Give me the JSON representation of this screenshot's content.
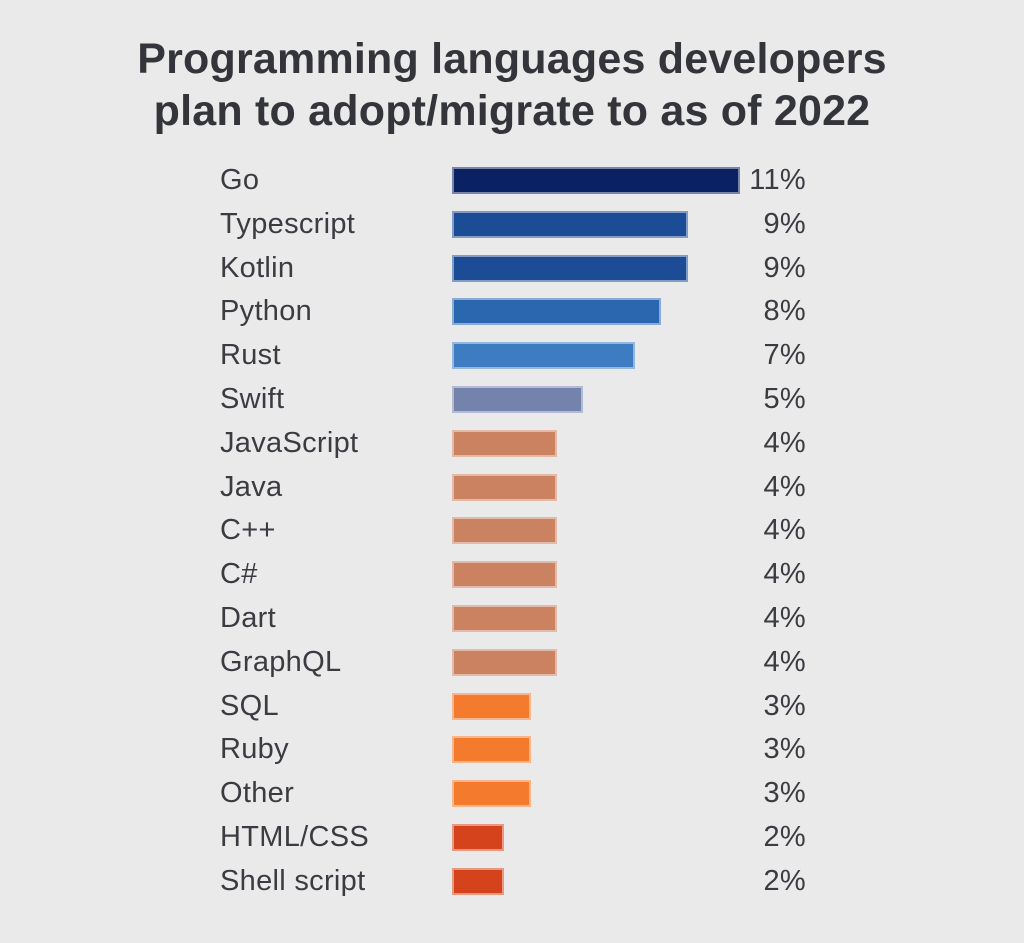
{
  "header": {
    "title_line1": "Programming languages developers",
    "title_line2": "plan to adopt/migrate to as of 2022"
  },
  "theme": {
    "background": "#eaeaea",
    "title_color": "#34353b",
    "label_color": "#3b3c42",
    "bar_outline": "rgba(255,255,255,0.45)"
  },
  "chart_data": {
    "type": "bar",
    "orientation": "horizontal",
    "title": "Programming languages developers plan to adopt/migrate to as of 2022",
    "xlabel": "",
    "ylabel": "",
    "xlim": [
      0,
      11
    ],
    "grid": false,
    "legend": "none",
    "categories": [
      "Go",
      "Typescript",
      "Kotlin",
      "Python",
      "Rust",
      "Swift",
      "JavaScript",
      "Java",
      "C++",
      "C#",
      "Dart",
      "GraphQL",
      "SQL",
      "Ruby",
      "Other",
      "HTML/CSS",
      "Shell script"
    ],
    "values": [
      11,
      9,
      9,
      8,
      7,
      5,
      4,
      4,
      4,
      4,
      4,
      4,
      3,
      3,
      3,
      2,
      2
    ],
    "value_labels": [
      "11%",
      "9%",
      "9%",
      "8%",
      "7%",
      "5%",
      "4%",
      "4%",
      "4%",
      "4%",
      "4%",
      "4%",
      "3%",
      "3%",
      "3%",
      "2%",
      "2%"
    ],
    "bar_colors": [
      "#0a2263",
      "#1b4c95",
      "#1b4c95",
      "#2a67ae",
      "#3e7cc1",
      "#7383ab",
      "#ca8260",
      "#ca8260",
      "#ca8260",
      "#ca8260",
      "#ca8260",
      "#ca8260",
      "#f47b2e",
      "#f47b2e",
      "#f47b2e",
      "#d5431d",
      "#d5431d"
    ]
  }
}
